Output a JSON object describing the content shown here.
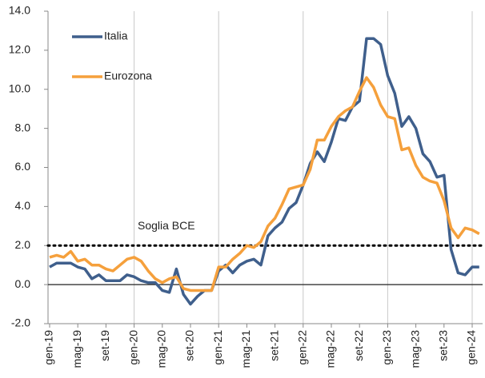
{
  "chart_data": {
    "type": "line",
    "categories": [
      "gen-19",
      null,
      null,
      null,
      "mag-19",
      null,
      null,
      null,
      "set-19",
      null,
      null,
      null,
      "gen-20",
      null,
      null,
      null,
      "mag-20",
      null,
      null,
      null,
      "set-20",
      null,
      null,
      null,
      "gen-21",
      null,
      null,
      null,
      "mag-21",
      null,
      null,
      null,
      "set-21",
      null,
      null,
      null,
      "gen-22",
      null,
      null,
      null,
      "mag-22",
      null,
      null,
      null,
      "set-22",
      null,
      null,
      null,
      "gen-23",
      null,
      null,
      null,
      "mag-23",
      null,
      null,
      null,
      "set-23",
      null,
      null,
      null,
      "gen-24",
      null
    ],
    "series": [
      {
        "name": "Italia",
        "color": "#3f5f8c",
        "values": [
          0.9,
          1.1,
          1.1,
          1.1,
          0.9,
          0.8,
          0.3,
          0.5,
          0.2,
          0.2,
          0.2,
          0.5,
          0.4,
          0.2,
          0.1,
          0.1,
          -0.3,
          -0.4,
          0.8,
          -0.5,
          -1.0,
          -0.6,
          -0.3,
          -0.3,
          0.7,
          1.0,
          0.6,
          1.0,
          1.2,
          1.3,
          1.0,
          2.5,
          2.9,
          3.2,
          3.9,
          4.2,
          5.1,
          6.2,
          6.8,
          6.3,
          7.3,
          8.5,
          8.4,
          9.1,
          9.4,
          12.6,
          12.6,
          12.3,
          10.7,
          9.8,
          8.1,
          8.6,
          8.0,
          6.7,
          6.3,
          5.5,
          5.6,
          1.8,
          0.6,
          0.5,
          0.9,
          0.9
        ]
      },
      {
        "name": "Eurozona",
        "color": "#f5a03c",
        "values": [
          1.4,
          1.5,
          1.4,
          1.7,
          1.2,
          1.3,
          1.0,
          1.0,
          0.8,
          0.7,
          1.0,
          1.3,
          1.4,
          1.2,
          0.7,
          0.3,
          0.1,
          0.3,
          0.4,
          -0.2,
          -0.3,
          -0.3,
          -0.3,
          -0.3,
          0.9,
          0.9,
          1.3,
          1.6,
          2.0,
          1.9,
          2.2,
          3.0,
          3.4,
          4.1,
          4.9,
          5.0,
          5.1,
          5.9,
          7.4,
          7.4,
          8.1,
          8.6,
          8.9,
          9.1,
          9.9,
          10.6,
          10.1,
          9.2,
          8.6,
          8.5,
          6.9,
          7.0,
          6.1,
          5.5,
          5.3,
          5.2,
          4.3,
          2.9,
          2.4,
          2.9,
          2.8,
          2.6
        ]
      }
    ],
    "ylim": [
      -2,
      14
    ],
    "yticks": [
      {
        "value": -2,
        "label": "-2.0"
      },
      {
        "value": 0,
        "label": "0.0"
      },
      {
        "value": 2,
        "label": "2.0"
      },
      {
        "value": 4,
        "label": "4.0"
      },
      {
        "value": 6,
        "label": "6.0"
      },
      {
        "value": 8,
        "label": "8.0"
      },
      {
        "value": 10,
        "label": "10.0"
      },
      {
        "value": 12,
        "label": "12.0"
      },
      {
        "value": 14,
        "label": "14.0"
      }
    ],
    "threshold": {
      "value": 2,
      "label": "Soglia BCE"
    },
    "legend": "top-left"
  }
}
